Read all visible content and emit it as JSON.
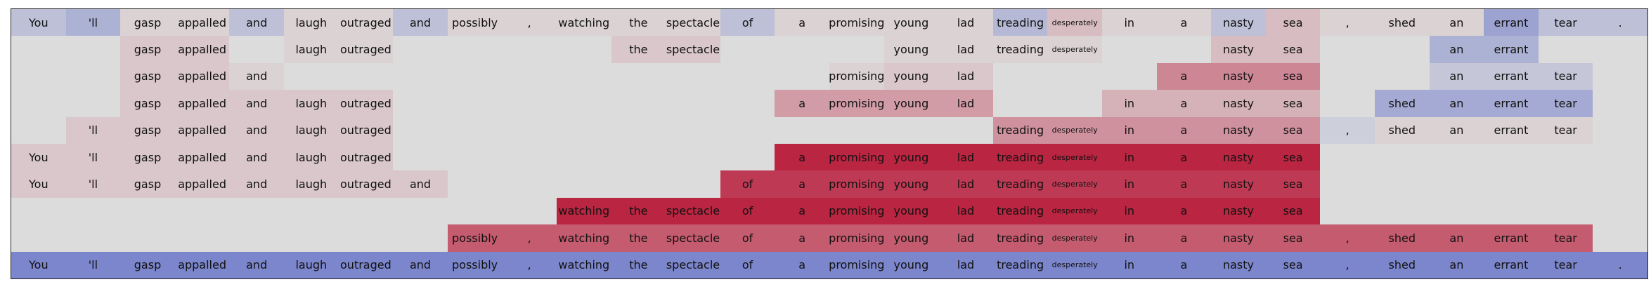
{
  "chart_data": {
    "type": "heatmap",
    "tokens": [
      "You",
      "'ll",
      "gasp",
      "appalled",
      "and",
      "laugh",
      "outraged",
      "and",
      "possibly",
      ",",
      "watching",
      "the",
      "spectacle",
      "of",
      "a",
      "promising",
      "young",
      "lad",
      "treading",
      "desperately",
      "in",
      "a",
      "nasty",
      "sea",
      ",",
      "shed",
      "an",
      "errant",
      "tear",
      "."
    ],
    "value_range": [
      -1,
      1
    ],
    "rows": [
      [
        -0.2,
        -0.3,
        0.05,
        0.05,
        -0.2,
        0.05,
        0.05,
        -0.2,
        0.05,
        0.05,
        0.05,
        0.05,
        0.05,
        -0.2,
        0.05,
        0.05,
        0.05,
        0.05,
        -0.25,
        0.15,
        0.05,
        0.05,
        -0.2,
        0.15,
        0.05,
        0.05,
        0.05,
        -0.4,
        -0.2,
        -0.2
      ],
      [
        null,
        null,
        0.1,
        0.1,
        null,
        0.05,
        0.05,
        null,
        null,
        null,
        null,
        0.1,
        0.1,
        null,
        null,
        null,
        0.05,
        0.05,
        0.05,
        0.05,
        null,
        null,
        0.15,
        0.15,
        null,
        null,
        -0.3,
        -0.3,
        null,
        null
      ],
      [
        null,
        null,
        0.1,
        0.1,
        0.05,
        null,
        null,
        null,
        null,
        null,
        null,
        null,
        null,
        null,
        null,
        0.05,
        0.1,
        0.1,
        null,
        null,
        null,
        0.4,
        0.4,
        0.4,
        null,
        null,
        -0.15,
        -0.15,
        -0.15,
        null
      ],
      [
        null,
        null,
        0.1,
        0.1,
        0.1,
        0.1,
        0.1,
        null,
        null,
        null,
        null,
        null,
        null,
        null,
        0.3,
        0.3,
        0.3,
        0.3,
        null,
        null,
        0.2,
        0.2,
        0.2,
        0.2,
        null,
        -0.35,
        -0.35,
        -0.35,
        -0.35,
        null
      ],
      [
        null,
        0.1,
        0.1,
        0.1,
        0.1,
        0.1,
        0.1,
        null,
        null,
        null,
        null,
        null,
        null,
        null,
        null,
        null,
        null,
        null,
        0.35,
        0.35,
        0.35,
        0.35,
        0.35,
        0.35,
        -0.1,
        0.05,
        0.05,
        0.05,
        0.05,
        null
      ],
      [
        0.1,
        0.1,
        0.1,
        0.1,
        0.1,
        0.1,
        0.1,
        null,
        null,
        null,
        null,
        null,
        null,
        null,
        0.85,
        0.85,
        0.85,
        0.85,
        0.85,
        0.85,
        0.85,
        0.85,
        0.85,
        0.85,
        null,
        null,
        null,
        null,
        null,
        null
      ],
      [
        0.1,
        0.1,
        0.1,
        0.1,
        0.1,
        0.1,
        0.1,
        0.1,
        null,
        null,
        null,
        null,
        null,
        0.75,
        0.75,
        0.75,
        0.75,
        0.75,
        0.75,
        0.75,
        0.75,
        0.75,
        0.75,
        0.75,
        null,
        null,
        null,
        null,
        null,
        null
      ],
      [
        null,
        null,
        null,
        null,
        null,
        null,
        null,
        null,
        null,
        null,
        0.85,
        0.85,
        0.85,
        0.85,
        0.85,
        0.85,
        0.85,
        0.85,
        0.85,
        0.85,
        0.85,
        0.85,
        0.85,
        0.85,
        null,
        null,
        null,
        null,
        null,
        null
      ],
      [
        null,
        null,
        null,
        null,
        null,
        null,
        null,
        null,
        0.6,
        0.6,
        0.6,
        0.6,
        0.6,
        0.6,
        0.6,
        0.6,
        0.6,
        0.6,
        0.6,
        0.6,
        0.6,
        0.6,
        0.6,
        0.6,
        0.6,
        0.6,
        0.6,
        0.6,
        0.6,
        null
      ],
      [
        -0.6,
        -0.6,
        -0.6,
        -0.6,
        -0.6,
        -0.6,
        -0.6,
        -0.6,
        -0.6,
        -0.6,
        -0.6,
        -0.6,
        -0.6,
        -0.6,
        -0.6,
        -0.6,
        -0.6,
        -0.6,
        -0.6,
        -0.6,
        -0.6,
        -0.6,
        -0.6,
        -0.6,
        -0.6,
        -0.6,
        -0.6,
        -0.6,
        -0.6,
        -0.6
      ]
    ],
    "small_label_tokens": [
      "desperately"
    ],
    "colormap": "coolwarm",
    "empty_color": "#dcdcdc"
  }
}
